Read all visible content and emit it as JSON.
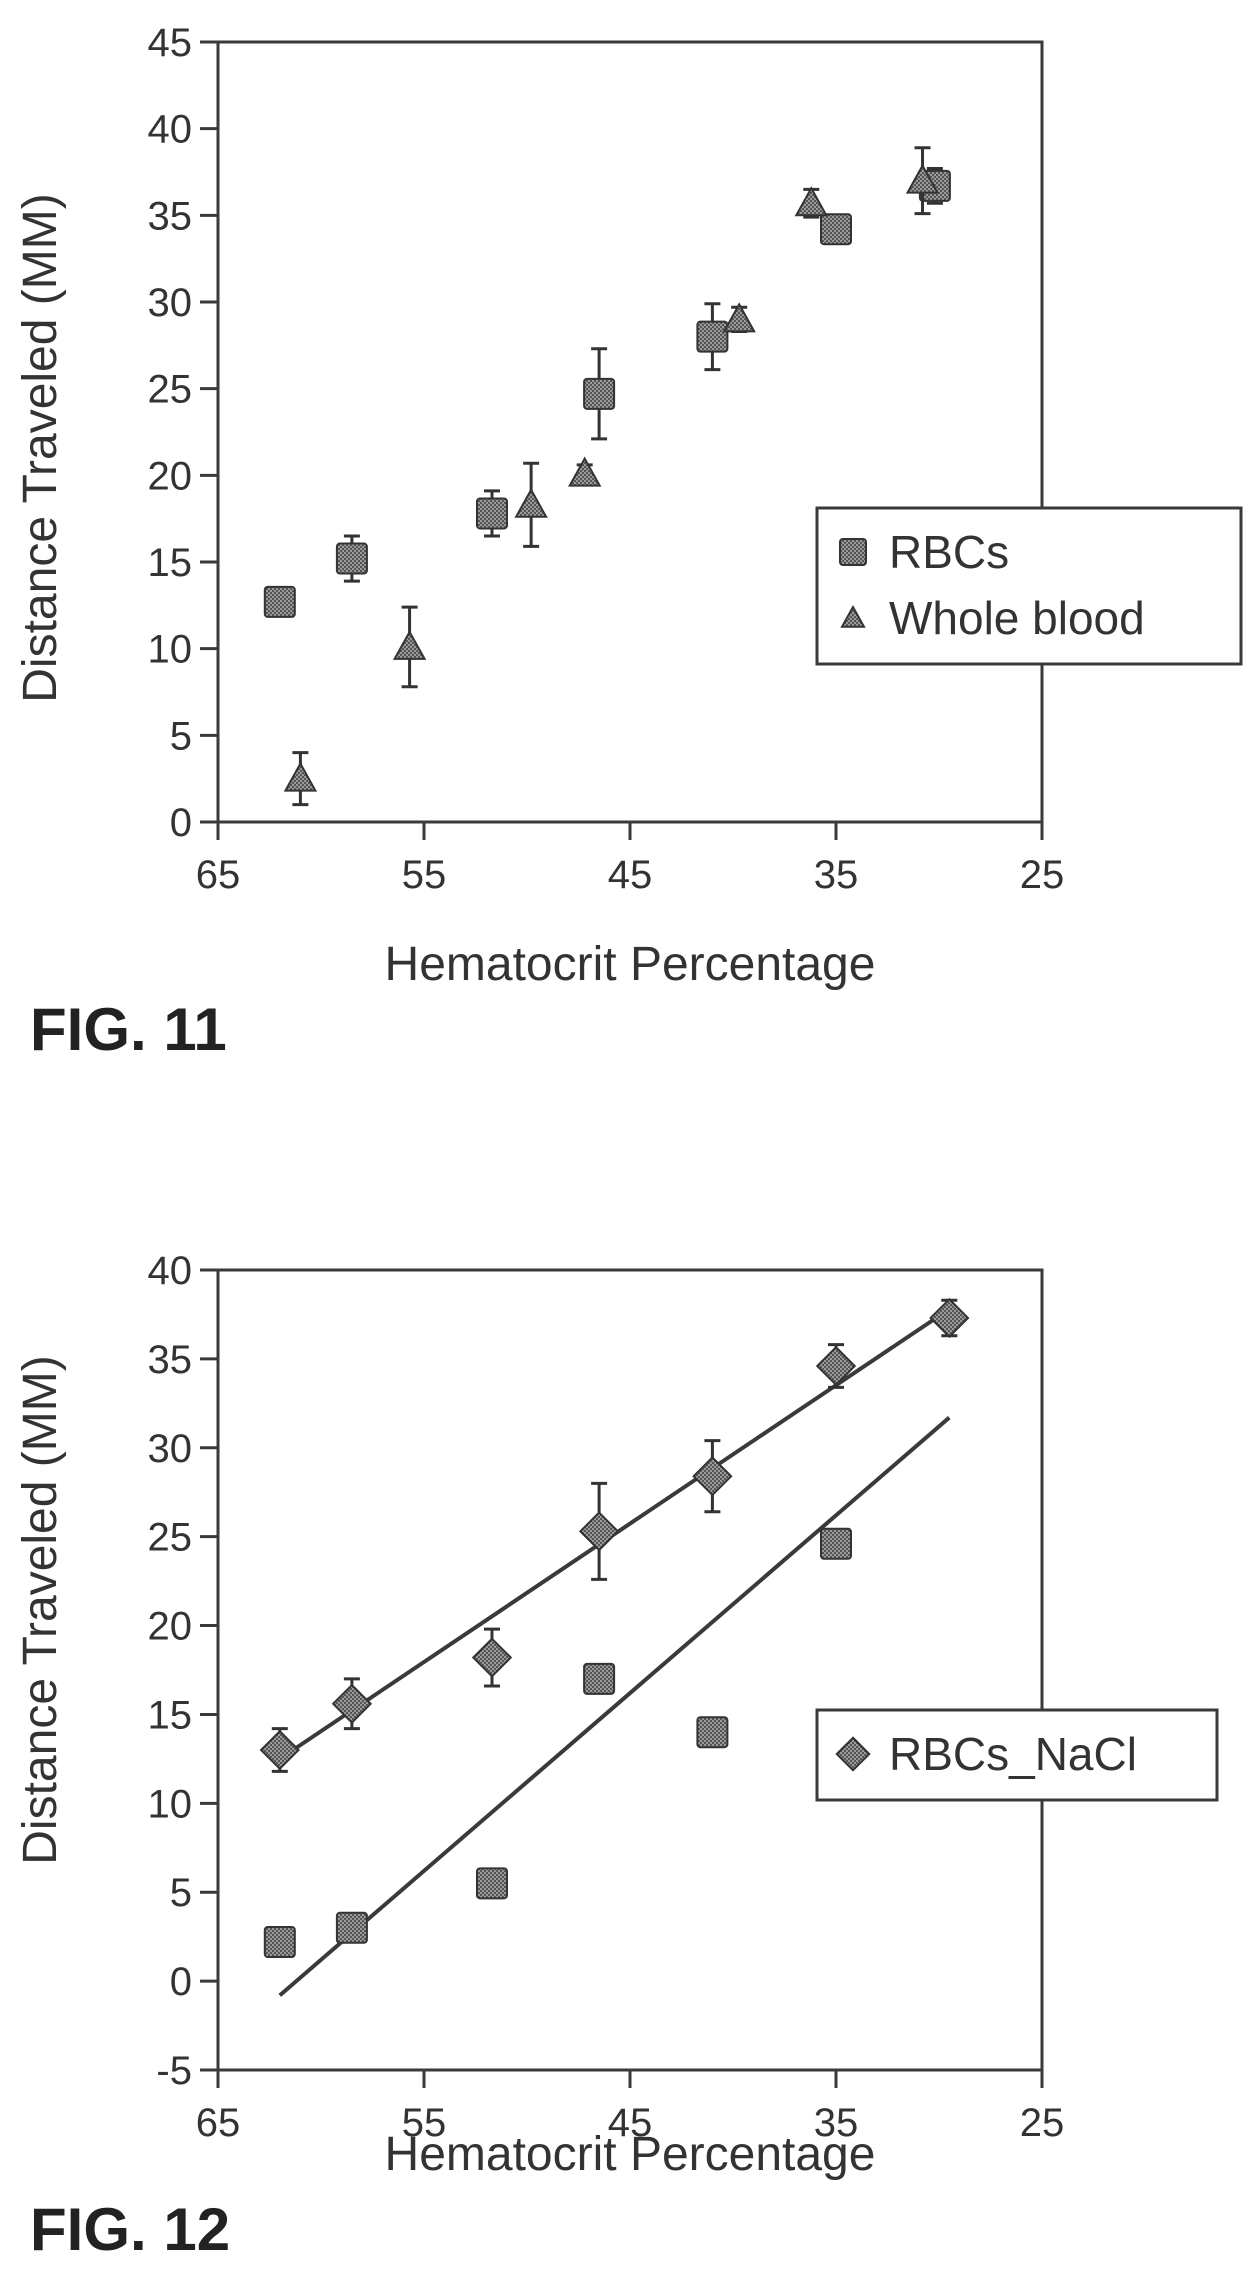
{
  "chart_data": [
    {
      "type": "scatter",
      "figure_label": "FIG. 11",
      "xlabel": "Hematocrit Percentage",
      "ylabel": "Distance Traveled (MM)",
      "xlim": [
        65,
        25
      ],
      "ylim": [
        0,
        45
      ],
      "xticks": [
        65,
        55,
        45,
        35,
        25
      ],
      "yticks": [
        0,
        5,
        10,
        15,
        20,
        25,
        30,
        35,
        40,
        45
      ],
      "grid": false,
      "legend": "right",
      "series": [
        {
          "name": "RBCs",
          "marker": "square",
          "points": [
            {
              "x": 62,
              "y": 12.7,
              "err": 0.7
            },
            {
              "x": 58.5,
              "y": 15.2,
              "err": 1.3
            },
            {
              "x": 51.7,
              "y": 17.8,
              "err": 1.3
            },
            {
              "x": 46.5,
              "y": 24.7,
              "err": 2.6
            },
            {
              "x": 41,
              "y": 28.0,
              "err": 1.9
            },
            {
              "x": 35,
              "y": 34.2,
              "err": 0.6
            },
            {
              "x": 30.2,
              "y": 36.7,
              "err": 1.0
            }
          ]
        },
        {
          "name": "Whole blood",
          "marker": "triangle",
          "points": [
            {
              "x": 61,
              "y": 2.5,
              "err": 1.5
            },
            {
              "x": 55.7,
              "y": 10.1,
              "err": 2.3
            },
            {
              "x": 49.8,
              "y": 18.3,
              "err": 2.4
            },
            {
              "x": 47.2,
              "y": 20.1,
              "err": 0.5
            },
            {
              "x": 39.7,
              "y": 29.0,
              "err": 0.7
            },
            {
              "x": 36.2,
              "y": 35.7,
              "err": 0.8
            },
            {
              "x": 30.8,
              "y": 37.0,
              "err": 1.9
            }
          ]
        }
      ]
    },
    {
      "type": "scatter",
      "figure_label": "FIG. 12",
      "xlabel": "Hematocrit Percentage",
      "ylabel": "Distance Traveled (MM)",
      "xlim": [
        65,
        25
      ],
      "ylim": [
        -5,
        40
      ],
      "xticks": [
        65,
        55,
        45,
        35,
        25
      ],
      "yticks": [
        -5,
        0,
        5,
        10,
        15,
        20,
        25,
        30,
        35,
        40
      ],
      "grid": false,
      "legend": "right",
      "series": [
        {
          "name": "RBCs_NaCl",
          "marker": "diamond",
          "points": [
            {
              "x": 62,
              "y": 13.0,
              "err": 1.2
            },
            {
              "x": 58.5,
              "y": 15.6,
              "err": 1.4
            },
            {
              "x": 51.7,
              "y": 18.2,
              "err": 1.6
            },
            {
              "x": 46.5,
              "y": 25.3,
              "err": 2.7
            },
            {
              "x": 41,
              "y": 28.4,
              "err": 2.0
            },
            {
              "x": 35,
              "y": 34.6,
              "err": 1.2
            },
            {
              "x": 29.5,
              "y": 37.3,
              "err": 1.0
            }
          ],
          "fit_line": {
            "x": [
              62,
              29.5
            ],
            "y": [
              12.5,
              37.8
            ]
          }
        },
        {
          "marker": "square",
          "points": [
            {
              "x": 62,
              "y": 2.2
            },
            {
              "x": 58.5,
              "y": 3.0
            },
            {
              "x": 51.7,
              "y": 5.5
            },
            {
              "x": 46.5,
              "y": 17.0
            },
            {
              "x": 41,
              "y": 14.0
            },
            {
              "x": 35,
              "y": 24.6
            }
          ],
          "fit_line": {
            "x": [
              62,
              29.5
            ],
            "y": [
              -0.8,
              31.7
            ]
          }
        }
      ]
    }
  ]
}
